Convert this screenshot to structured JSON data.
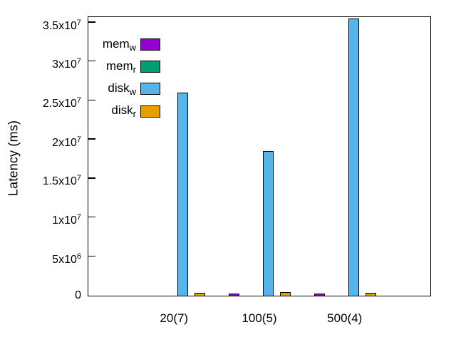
{
  "chart_data": {
    "type": "bar",
    "ylabel": "Latency (ms)",
    "xlabel": "",
    "categories": [
      "20(7)",
      "100(5)",
      "500(4)"
    ],
    "series": [
      {
        "name": "mem",
        "sub": "w",
        "label": "mem_w",
        "color": "#9400d3",
        "values": [
          50000,
          150000,
          150000
        ]
      },
      {
        "name": "mem",
        "sub": "r",
        "label": "mem_r",
        "color": "#009e73",
        "values": [
          30000,
          30000,
          30000
        ]
      },
      {
        "name": "disk",
        "sub": "w",
        "label": "disk_w",
        "color": "#56b4e9",
        "values": [
          26000000,
          18500000,
          35500000
        ]
      },
      {
        "name": "disk",
        "sub": "r",
        "label": "disk_r",
        "color": "#e69f00",
        "values": [
          300000,
          400000,
          300000
        ]
      }
    ],
    "yticks": [
      {
        "value": 0,
        "label": "0"
      },
      {
        "value": 5000000,
        "label": "5x10^6"
      },
      {
        "value": 10000000,
        "label": "1x10^7"
      },
      {
        "value": 15000000,
        "label": "1.5x10^7"
      },
      {
        "value": 20000000,
        "label": "2x10^7"
      },
      {
        "value": 25000000,
        "label": "2.5x10^7"
      },
      {
        "value": 30000000,
        "label": "3x10^7"
      },
      {
        "value": 35000000,
        "label": "3.5x10^7"
      }
    ],
    "ylim": [
      0,
      35900000
    ],
    "legend_position": "top-left",
    "grid": false,
    "axis_color": "#000000"
  }
}
